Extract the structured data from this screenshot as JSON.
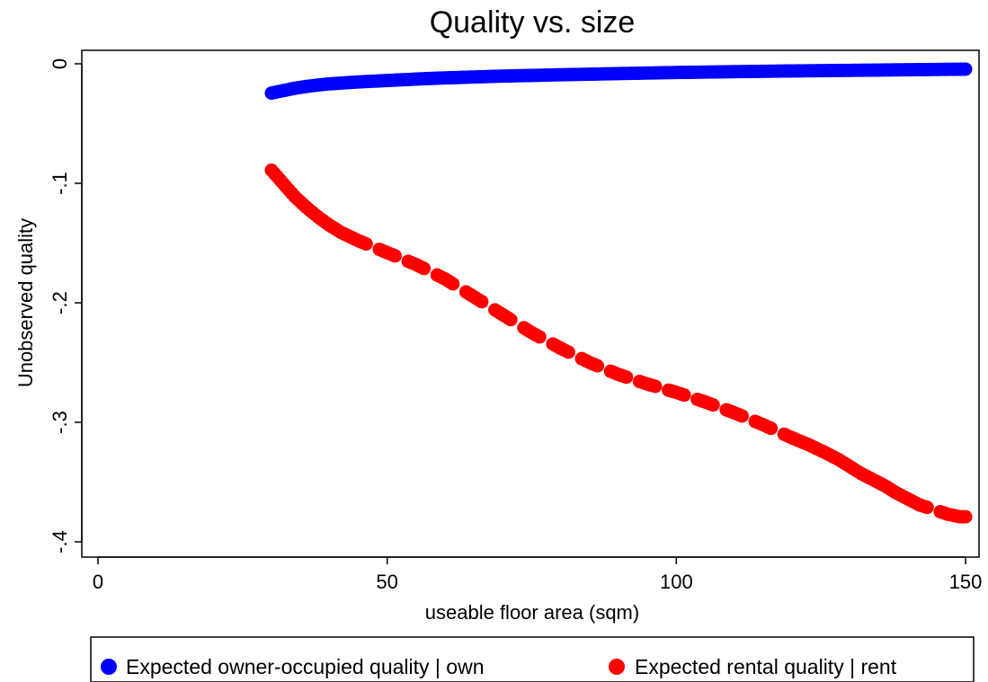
{
  "chart_data": {
    "type": "scatter",
    "title": "Quality vs. size",
    "xlabel": "useable floor area (sqm)",
    "ylabel": "Unobserved quality",
    "xlim": [
      0,
      150
    ],
    "ylim": [
      -0.4,
      0
    ],
    "xticks": [
      0,
      50,
      100,
      150
    ],
    "xtick_labels": [
      "0",
      "50",
      "100",
      "150"
    ],
    "yticks": [
      0,
      -0.1,
      -0.2,
      -0.3,
      -0.4
    ],
    "ytick_labels": [
      "0",
      "-.1",
      "-.2",
      "-.3",
      "-.4"
    ],
    "grid": false,
    "legend_position": "bottom",
    "series": [
      {
        "name": "Expected owner-occupied quality | own",
        "color": "#0000ff",
        "x": [
          30,
          32,
          34,
          36,
          38,
          40,
          45,
          50,
          55,
          60,
          70,
          80,
          90,
          100,
          110,
          120,
          130,
          140,
          150
        ],
        "y": [
          -0.0245,
          -0.0225,
          -0.0205,
          -0.019,
          -0.0178,
          -0.0168,
          -0.0152,
          -0.014,
          -0.0128,
          -0.0118,
          -0.0103,
          -0.0092,
          -0.0082,
          -0.0073,
          -0.0066,
          -0.006,
          -0.0055,
          -0.005,
          -0.0045
        ]
      },
      {
        "name": "Expected rental quality | rent",
        "color": "#ff0000",
        "x": [
          30,
          32,
          34,
          36,
          38,
          40,
          42,
          45,
          50,
          55,
          60,
          65,
          70,
          75,
          80,
          85,
          90,
          95,
          100,
          105,
          110,
          115,
          120,
          123,
          126,
          128,
          130,
          132,
          134,
          136,
          138,
          140,
          142,
          147,
          149,
          150
        ],
        "y": [
          -0.089,
          -0.1,
          -0.111,
          -0.12,
          -0.128,
          -0.135,
          -0.141,
          -0.148,
          -0.158,
          -0.168,
          -0.18,
          -0.195,
          -0.21,
          -0.225,
          -0.238,
          -0.25,
          -0.26,
          -0.268,
          -0.275,
          -0.283,
          -0.292,
          -0.302,
          -0.313,
          -0.319,
          -0.326,
          -0.331,
          -0.337,
          -0.343,
          -0.348,
          -0.353,
          -0.359,
          -0.364,
          -0.369,
          -0.377,
          -0.379,
          -0.379
        ]
      }
    ]
  }
}
